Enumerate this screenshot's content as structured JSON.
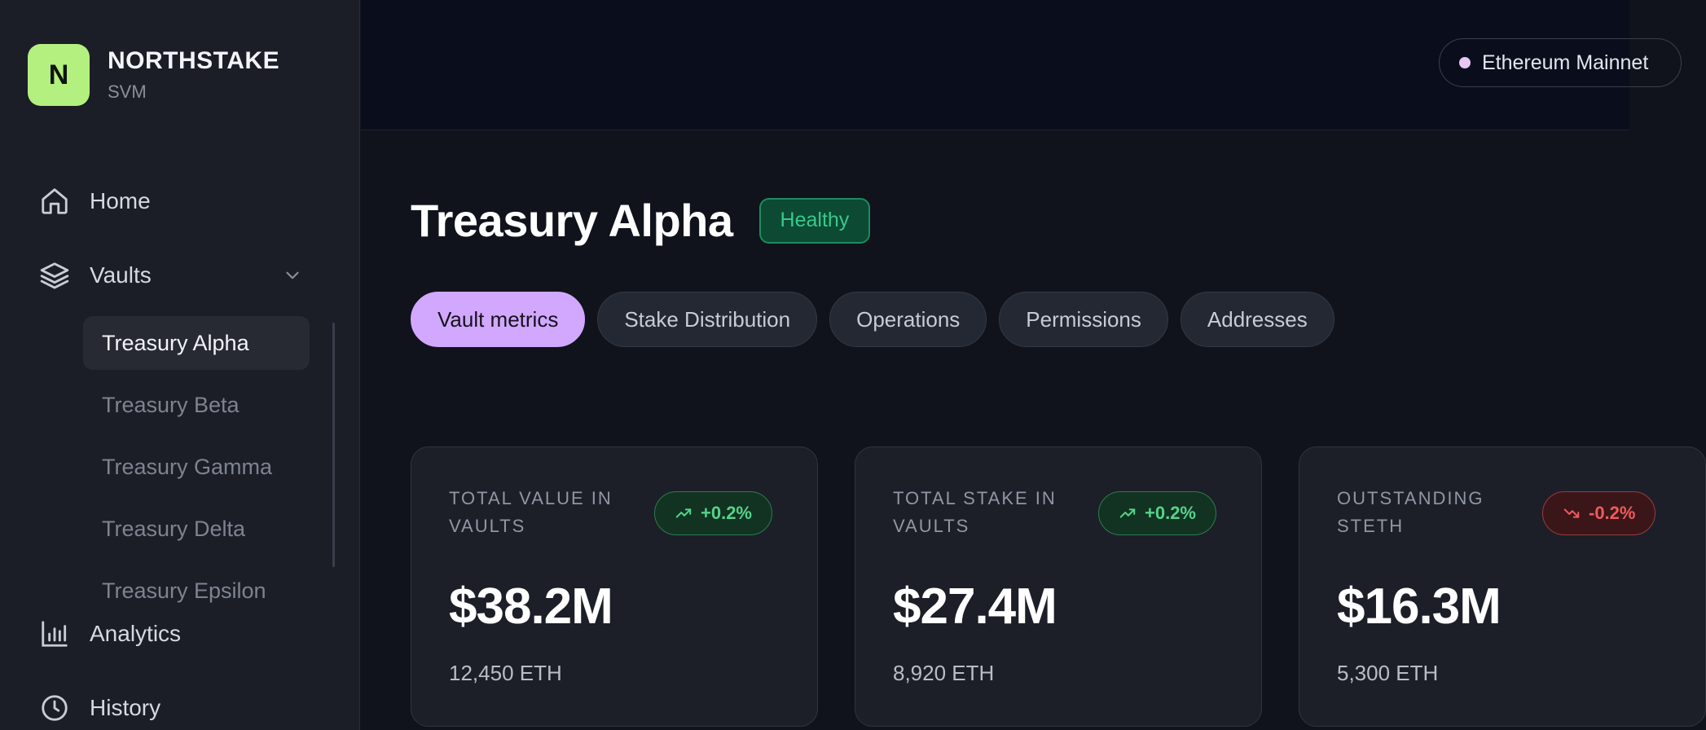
{
  "brand": {
    "logo_letter": "N",
    "name": "NORTHSTAKE",
    "subtitle": "SVM",
    "logo_color": "#b3f07f"
  },
  "nav": {
    "home": {
      "label": "Home",
      "icon": "home-icon"
    },
    "vaults": {
      "label": "Vaults",
      "icon": "layers-icon",
      "expanded": true,
      "items": [
        {
          "label": "Treasury Alpha",
          "active": true
        },
        {
          "label": "Treasury Beta",
          "active": false
        },
        {
          "label": "Treasury Gamma",
          "active": false
        },
        {
          "label": "Treasury Delta",
          "active": false
        },
        {
          "label": "Treasury Epsilon",
          "active": false
        }
      ]
    },
    "analytics": {
      "label": "Analytics",
      "icon": "bar-chart-icon"
    },
    "history": {
      "label": "History",
      "icon": "clock-icon"
    }
  },
  "topbar": {
    "network_label": "Ethereum Mainnet",
    "network_dot_color": "#e7c8f2"
  },
  "page": {
    "title": "Treasury Alpha",
    "status": "Healthy",
    "status_color": "#38c98a"
  },
  "tabs": [
    {
      "label": "Vault metrics",
      "active": true
    },
    {
      "label": "Stake Distribution",
      "active": false
    },
    {
      "label": "Operations",
      "active": false
    },
    {
      "label": "Permissions",
      "active": false
    },
    {
      "label": "Addresses",
      "active": false
    }
  ],
  "accent_color": "#d2a8ff",
  "metrics": [
    {
      "label": "TOTAL VALUE IN VAULTS",
      "delta": "+0.2%",
      "trend": "up",
      "value": "$38.2M",
      "sub": "12,450 ETH"
    },
    {
      "label": "TOTAL STAKE IN VAULTS",
      "delta": "+0.2%",
      "trend": "up",
      "value": "$27.4M",
      "sub": "8,920 ETH"
    },
    {
      "label": "OUTSTANDING STETH",
      "delta": "-0.2%",
      "trend": "down",
      "value": "$16.3M",
      "sub": "5,300 ETH"
    }
  ]
}
